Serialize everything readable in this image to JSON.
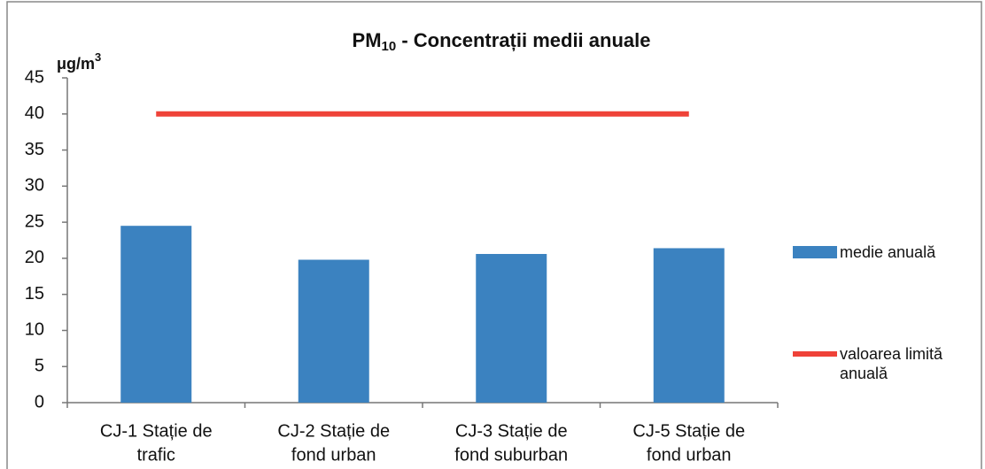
{
  "chart_data": {
    "type": "bar",
    "title": [
      "PM",
      "10",
      " - Concentrații medii anuale"
    ],
    "y_label": [
      "μg/m",
      "3"
    ],
    "categories": [
      [
        "CJ-1 Stație de",
        "trafic"
      ],
      [
        "CJ-2 Stație de",
        "fond urban"
      ],
      [
        "CJ-3 Stație de",
        "fond suburban"
      ],
      [
        "CJ-5 Stație de",
        "fond urban"
      ]
    ],
    "series": [
      {
        "name": "medie anuală",
        "type": "bar",
        "color": "#3b82c0",
        "values": [
          24.5,
          19.8,
          20.6,
          21.4
        ]
      },
      {
        "name": "valoarea limită anuală",
        "type": "line",
        "color": "#ef4238",
        "values": [
          40,
          40,
          40,
          40
        ]
      }
    ],
    "ylim": [
      0,
      45
    ],
    "yticks": [
      0,
      5,
      10,
      15,
      20,
      25,
      30,
      35,
      40,
      45
    ],
    "legend": "right"
  }
}
